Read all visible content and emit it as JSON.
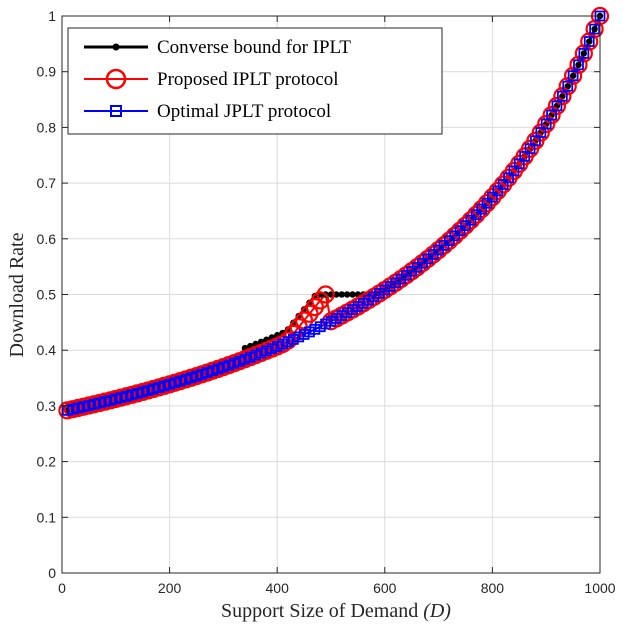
{
  "chart_data": {
    "type": "line",
    "title": "",
    "xlabel_main": "Support Size of Demand ",
    "xlabel_var": "(D)",
    "ylabel": "Download Rate",
    "xlim": [
      0,
      1000
    ],
    "ylim": [
      0,
      1
    ],
    "xticks": [
      "0",
      "200",
      "400",
      "600",
      "800",
      "1000"
    ],
    "yticks": [
      "0",
      "0.1",
      "0.2",
      "0.3",
      "0.4",
      "0.5",
      "0.6",
      "0.7",
      "0.8",
      "0.9",
      "1"
    ],
    "grid": true,
    "legend_position": "top-left",
    "series": [
      {
        "name": "Converse bound for IPLT",
        "color": "#000000",
        "marker": "dot",
        "description": "Sampled every 10 units of D",
        "x_step": 10,
        "x_start": 10,
        "x_end": 1000
      },
      {
        "name": "Proposed IPLT protocol",
        "color": "#ff0000",
        "marker": "circle",
        "x_step": 10,
        "x_start": 10,
        "x_end": 1000
      },
      {
        "name": "Optimal JPLT protocol",
        "color": "#0000ff",
        "marker": "square",
        "x_step": 10,
        "x_start": 10,
        "x_end": 1000
      }
    ]
  }
}
